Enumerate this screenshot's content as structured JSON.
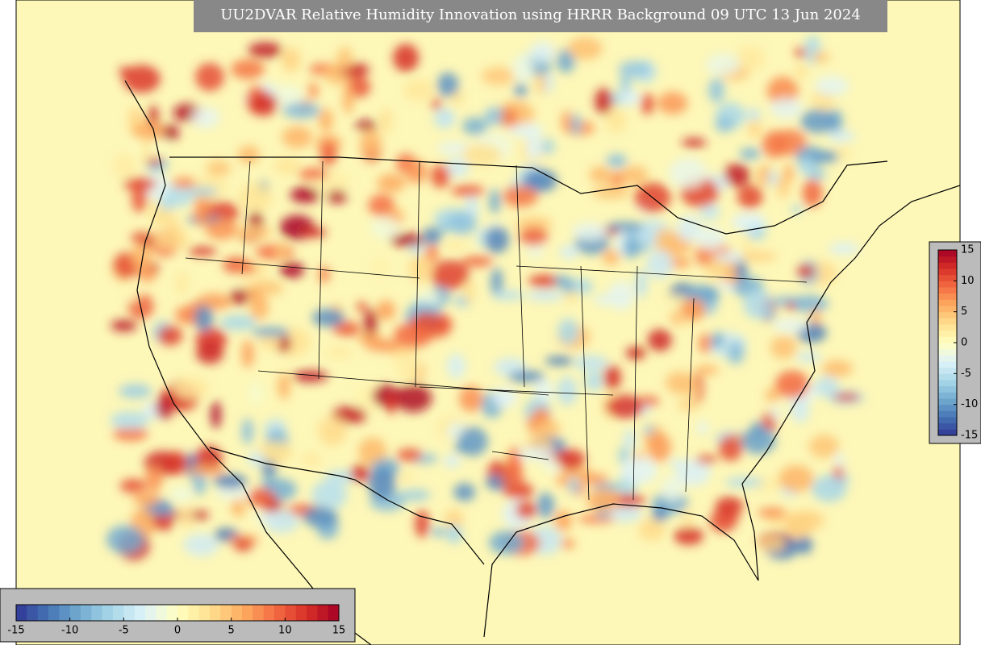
{
  "title": "UU2DVAR Relative Humidity Innovation using HRRR Background 09 UTC 13 Jun 2024",
  "colorbar": {
    "range": [
      -15,
      15
    ],
    "ticks": [
      -15,
      -10,
      -5,
      0,
      5,
      10,
      15
    ],
    "colors": [
      "#313695",
      "#4575b4",
      "#74add1",
      "#abd9e9",
      "#e0f3f8",
      "#ffffbf",
      "#fee090",
      "#fdae61",
      "#f46d43",
      "#d73027",
      "#a50026"
    ]
  }
}
